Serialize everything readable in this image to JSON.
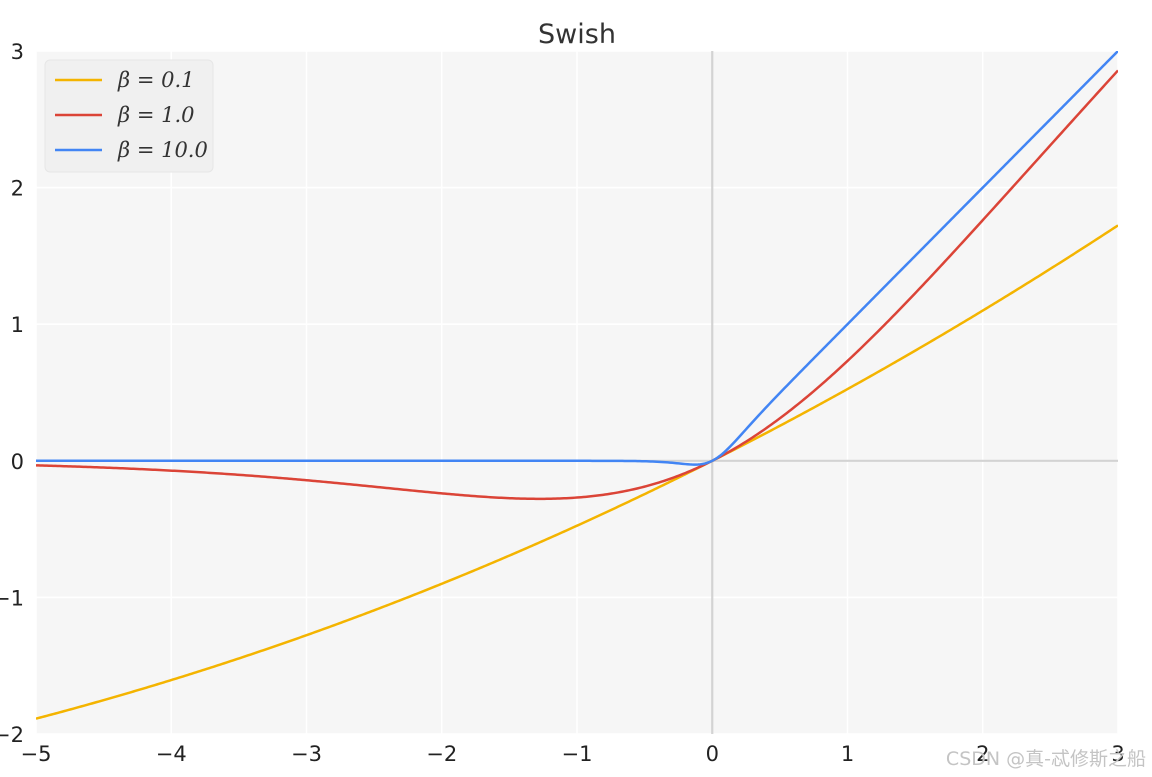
{
  "watermark": "CSDN @真-忒修斯之船",
  "chart_data": {
    "type": "line",
    "title": "Swish",
    "xlabel": "",
    "ylabel": "",
    "xlim": [
      -5,
      3
    ],
    "ylim": [
      -2,
      3
    ],
    "x_ticks": [
      -5,
      -4,
      -3,
      -2,
      -1,
      0,
      1,
      2,
      3
    ],
    "y_ticks": [
      -2,
      -1,
      0,
      1,
      2,
      3
    ],
    "x_tick_labels": [
      "−5",
      "−4",
      "−3",
      "−2",
      "−1",
      "0",
      "1",
      "2",
      "3"
    ],
    "y_tick_labels": [
      "−2",
      "−1",
      "0",
      "1",
      "2",
      "3"
    ],
    "grid": true,
    "legend_position": "top-left",
    "function": "x * sigmoid(beta * x)",
    "x": [
      -5,
      -4.5,
      -4,
      -3.5,
      -3,
      -2.5,
      -2,
      -1.5,
      -1.25,
      -1,
      -0.75,
      -0.5,
      -0.25,
      0,
      0.25,
      0.5,
      0.75,
      1,
      1.5,
      2,
      2.5,
      3
    ],
    "series": [
      {
        "name": "β = 0.1",
        "beta": 0.1,
        "color": "#f4b400",
        "values": [
          -1.89,
          -1.77,
          -1.6,
          -1.44,
          -1.28,
          -1.12,
          -0.9,
          -0.7,
          -0.59,
          -0.48,
          -0.37,
          -0.24,
          -0.12,
          0,
          0.13,
          0.26,
          0.39,
          0.52,
          0.81,
          1.1,
          1.4,
          1.72
        ]
      },
      {
        "name": "β = 1.0",
        "beta": 1.0,
        "color": "#db4437",
        "values": [
          -0.03,
          -0.05,
          -0.07,
          -0.1,
          -0.14,
          -0.19,
          -0.24,
          -0.27,
          -0.28,
          -0.27,
          -0.24,
          -0.19,
          -0.11,
          0,
          0.14,
          0.31,
          0.51,
          0.73,
          1.23,
          1.76,
          2.3,
          2.86
        ]
      },
      {
        "name": "β = 10.0",
        "beta": 10.0,
        "color": "#4285f4",
        "values": [
          0.0,
          0.0,
          0.0,
          0.0,
          0.0,
          0.0,
          0.0,
          0.0,
          0.0,
          0.0,
          0.0,
          -0.003,
          -0.02,
          0,
          0.23,
          0.5,
          0.75,
          1.0,
          1.5,
          2.0,
          2.5,
          3.0
        ]
      }
    ]
  }
}
